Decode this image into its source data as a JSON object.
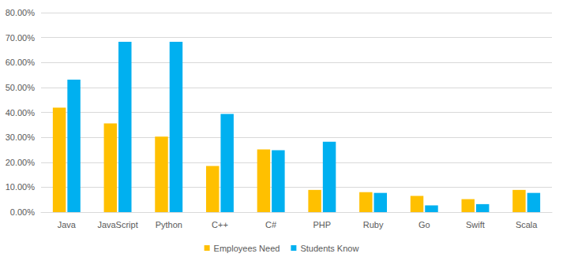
{
  "chart_data": {
    "type": "bar",
    "categories": [
      "Java",
      "JavaScript",
      "Python",
      "C++",
      "C#",
      "PHP",
      "Ruby",
      "Go",
      "Swift",
      "Scala"
    ],
    "series": [
      {
        "name": "Employees Need",
        "color": "#ffc000",
        "values": [
          41.9,
          35.6,
          30.3,
          18.5,
          25.1,
          8.9,
          8.0,
          6.5,
          5.2,
          8.9
        ]
      },
      {
        "name": "Students Know",
        "color": "#00b0f0",
        "values": [
          53.1,
          68.3,
          68.3,
          39.4,
          24.8,
          28.2,
          7.7,
          2.7,
          3.2,
          7.7
        ]
      }
    ],
    "ylim": [
      0,
      80
    ],
    "yticks": [
      {
        "value": 0,
        "label": "0.00%"
      },
      {
        "value": 10,
        "label": "10.00%"
      },
      {
        "value": 20,
        "label": "20.00%"
      },
      {
        "value": 30,
        "label": "30.00%"
      },
      {
        "value": 40,
        "label": "40.00%"
      },
      {
        "value": 50,
        "label": "50.00%"
      },
      {
        "value": 60,
        "label": "60.00%"
      },
      {
        "value": 70,
        "label": "70.00%"
      },
      {
        "value": 80,
        "label": "80.00%"
      }
    ],
    "grid": true,
    "legend": "bottom"
  }
}
